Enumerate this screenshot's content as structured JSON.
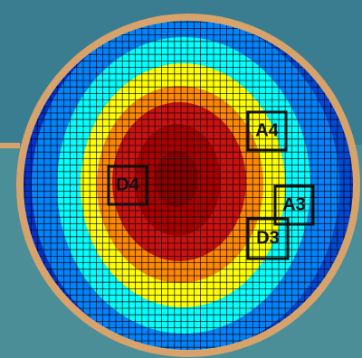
{
  "colors": {
    "background_top": "#3a7d91",
    "background_bottom": "#4c8e98",
    "ring": "#d8a36b",
    "grid": "#050505",
    "marker_box": "#111111",
    "heatmap_scale": [
      "#0033cc",
      "#0088ff",
      "#00ffff",
      "#ffff00",
      "#ff8800",
      "#cc1111",
      "#880000"
    ]
  },
  "markers": [
    {
      "id": "a4",
      "label": "A4"
    },
    {
      "id": "d4",
      "label": "D4"
    },
    {
      "id": "a3",
      "label": "A3"
    },
    {
      "id": "d3",
      "label": "D3"
    }
  ]
}
